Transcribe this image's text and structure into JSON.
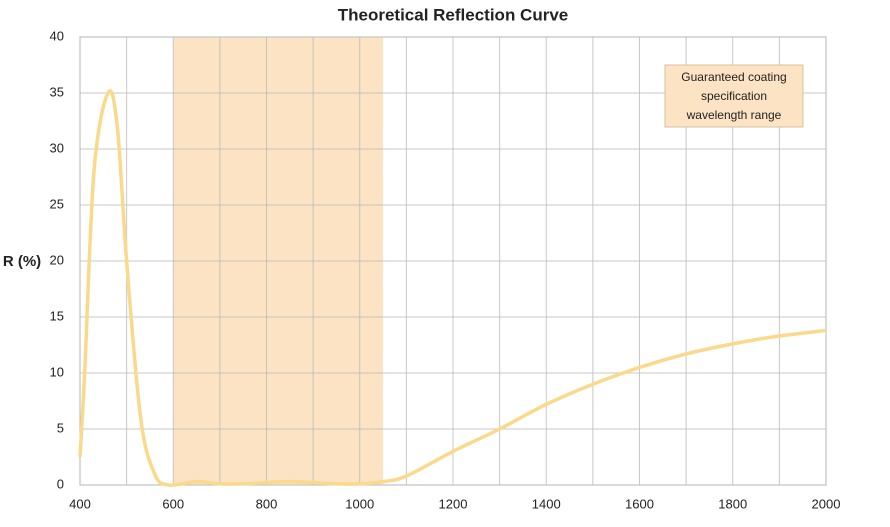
{
  "chart_data": {
    "type": "line",
    "title": "Theoretical Reflection Curve",
    "y_label": "R (%)",
    "annotation": [
      "Guaranteed coating",
      "specification",
      "wavelength range"
    ],
    "band": [
      600,
      1050
    ],
    "band_color": "#fce3c3",
    "xlim": [
      400,
      2000
    ],
    "xticks": [
      400,
      600,
      800,
      1000,
      1200,
      1400,
      1600,
      1800,
      2000
    ],
    "xgrid": [
      400,
      500,
      600,
      700,
      800,
      900,
      1000,
      1100,
      1200,
      1300,
      1400,
      1500,
      1600,
      1700,
      1800,
      1900,
      2000
    ],
    "ylim": [
      0,
      40
    ],
    "yticks": [
      0,
      5,
      10,
      15,
      20,
      25,
      30,
      35,
      40
    ],
    "grid": true,
    "series": [
      {
        "name": "R",
        "color": "#fbd98a",
        "x": [
          400,
          410,
          430,
          460,
          480,
          500,
          530,
          560,
          590,
          650,
          700,
          750,
          850,
          950,
          1000,
          1050,
          1100,
          1200,
          1300,
          1400,
          1500,
          1600,
          1700,
          1800,
          1900,
          2000
        ],
        "values": [
          2.5,
          10,
          28,
          35,
          32,
          20,
          6,
          1,
          0,
          0.3,
          0.1,
          0.1,
          0.3,
          0.1,
          0.1,
          0.3,
          0.8,
          3,
          5,
          7.2,
          9,
          10.5,
          11.7,
          12.6,
          13.3,
          13.8
        ]
      }
    ]
  }
}
